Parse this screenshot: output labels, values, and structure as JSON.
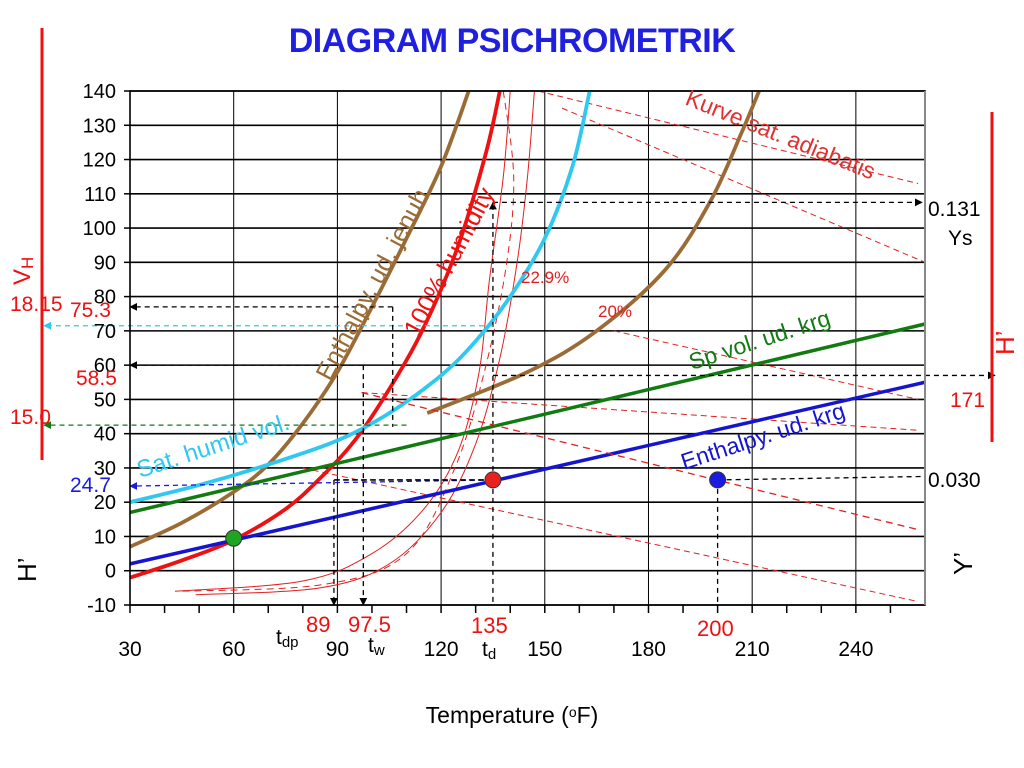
{
  "chart_data": {
    "type": "line",
    "title": "DIAGRAM PSICHROMETRIK",
    "xlabel_prefix": "Temperature (",
    "xlabel_unit_sub": "o",
    "xlabel_suffix": "F)",
    "xlim": [
      30,
      260
    ],
    "ylim": [
      -10,
      140
    ],
    "x_ticks": [
      30,
      60,
      90,
      120,
      150,
      180,
      210,
      240
    ],
    "y_ticks": [
      -10,
      0,
      10,
      20,
      30,
      40,
      50,
      60,
      70,
      80,
      90,
      100,
      110,
      120,
      130,
      140
    ],
    "grid": true,
    "colors": {
      "title": "#1f1fe0",
      "enthalpy_sat": "#9b6b36",
      "humidity_100": "#ee1111",
      "sat_humid_vol": "#2ec8f0",
      "sp_vol": "#117a11",
      "enthalpy_dry": "#1515d0",
      "adiabatic": "#e03030",
      "point_green": "#1fa51f",
      "point_red": "#e82020",
      "point_blue": "#1a1ae0"
    },
    "series": [
      {
        "name": "Enthalpy. ud. jenuh",
        "color": "#9b6b36",
        "points": [
          [
            30,
            7
          ],
          [
            45,
            14
          ],
          [
            60,
            23
          ],
          [
            70,
            31
          ],
          [
            80,
            43
          ],
          [
            90,
            58
          ],
          [
            100,
            77
          ],
          [
            110,
            97
          ],
          [
            120,
            118
          ],
          [
            128,
            140
          ]
        ]
      },
      {
        "name": "100% humidity",
        "color": "#ee1111",
        "points": [
          [
            30,
            -2
          ],
          [
            45,
            3
          ],
          [
            60,
            9
          ],
          [
            75,
            18
          ],
          [
            85,
            27
          ],
          [
            95,
            38
          ],
          [
            105,
            53
          ],
          [
            115,
            71
          ],
          [
            125,
            95
          ],
          [
            133,
            122
          ],
          [
            137,
            140
          ]
        ]
      },
      {
        "name": "Sat. humid vol.",
        "color": "#2ec8f0",
        "points": [
          [
            30,
            20
          ],
          [
            50,
            25
          ],
          [
            70,
            31
          ],
          [
            90,
            38
          ],
          [
            105,
            46
          ],
          [
            120,
            57
          ],
          [
            130,
            67
          ],
          [
            140,
            80
          ],
          [
            150,
            97
          ],
          [
            158,
            118
          ],
          [
            163,
            140
          ]
        ]
      },
      {
        "name": "Sp vol. ud. krg",
        "color": "#117a11",
        "points": [
          [
            30,
            17
          ],
          [
            260,
            72
          ]
        ]
      },
      {
        "name": "Enthalpy. ud. krg",
        "color": "#1515d0",
        "points": [
          [
            30,
            2
          ],
          [
            260,
            55
          ]
        ]
      },
      {
        "name": "",
        "color": "#9b6b36",
        "points": [
          [
            116,
            46
          ],
          [
            145,
            58
          ],
          [
            165,
            70
          ],
          [
            185,
            88
          ],
          [
            198,
            108
          ],
          [
            207,
            128
          ],
          [
            212,
            140
          ]
        ]
      }
    ],
    "adiabatic_label": "Kurve sat. adiabatis",
    "humidity_labels": [
      "22.9%",
      "20%"
    ],
    "curve_labels": {
      "enthalpy_sat": "Enthalpy. ud. jenuh",
      "humidity": "100% humidity",
      "sat_vol": "Sat. humid vol.",
      "sp_vol": "Sp vol. ud. krg",
      "enthalpy_dry": "Enthalpy. ud. krg"
    },
    "points": [
      {
        "x": 60,
        "y": 9.5,
        "color": "#1fa51f"
      },
      {
        "x": 135,
        "y": 26.5,
        "color": "#e82020"
      },
      {
        "x": 200,
        "y": 26.5,
        "color": "#1a1ae0"
      }
    ],
    "annotations": {
      "left_axis": "VH",
      "left_axis_base": "V",
      "left_axis_sub": "H",
      "left_axis_h": "H’",
      "right_axis_h": "H’",
      "right_axis_y": "Y’",
      "val_18_15": "18.15",
      "val_75_3": "75.3",
      "val_58_5": "58.5",
      "val_15_0": "15.0",
      "val_24_7": "24.7",
      "val_0_131": "0.131",
      "val_Ys": "Ys",
      "val_171": "171",
      "val_0_030": "0.030",
      "tdp_base": "t",
      "tdp_sub": "dp",
      "tdp_value": "89",
      "tw_base": "t",
      "tw_sub": "w",
      "tw_value": "97.5",
      "td_base": "t",
      "td_sub": "d",
      "td_value": "135",
      "t200_value": "200"
    }
  }
}
